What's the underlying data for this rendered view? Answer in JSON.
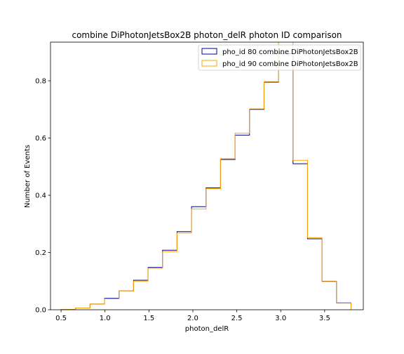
{
  "chart_data": {
    "type": "histogram-step",
    "title": "combine DiPhotonJetsBox2B photon_delR photon ID comparison",
    "xlabel": "photon_delR",
    "ylabel": "Number of Events",
    "xlim": [
      0.38,
      3.94
    ],
    "ylim": [
      0.0,
      0.935
    ],
    "xticks": [
      0.5,
      1.0,
      1.5,
      2.0,
      2.5,
      3.0,
      3.5
    ],
    "xtick_labels": [
      "0.5",
      "1.0",
      "1.5",
      "2.0",
      "2.5",
      "3.0",
      "3.5"
    ],
    "yticks": [
      0.0,
      0.2,
      0.4,
      0.6,
      0.8
    ],
    "ytick_labels": [
      "0.0",
      "0.2",
      "0.4",
      "0.6",
      "0.8"
    ],
    "bin_edges": [
      0.5,
      0.665,
      0.83,
      0.995,
      1.16,
      1.325,
      1.49,
      1.655,
      1.82,
      1.985,
      2.15,
      2.315,
      2.48,
      2.645,
      2.81,
      2.975,
      3.14,
      3.305,
      3.47,
      3.635,
      3.8
    ],
    "legend_position": "top-right",
    "series": [
      {
        "name": "pho_id 80 combine DiPhotonJetsBox2B",
        "color": "#00008b",
        "values": [
          0.001,
          0.006,
          0.02,
          0.04,
          0.066,
          0.103,
          0.148,
          0.208,
          0.273,
          0.36,
          0.426,
          0.525,
          0.61,
          0.7,
          0.795,
          0.895,
          0.51,
          0.248,
          0.099,
          0.024
        ]
      },
      {
        "name": "pho_id 90 combine DiPhotonJetsBox2B",
        "color": "#ffa500",
        "values": [
          0.001,
          0.006,
          0.02,
          0.038,
          0.066,
          0.1,
          0.145,
          0.203,
          0.268,
          0.352,
          0.423,
          0.528,
          0.617,
          0.702,
          0.797,
          0.955,
          0.522,
          0.252,
          0.1,
          0.023
        ]
      }
    ]
  }
}
